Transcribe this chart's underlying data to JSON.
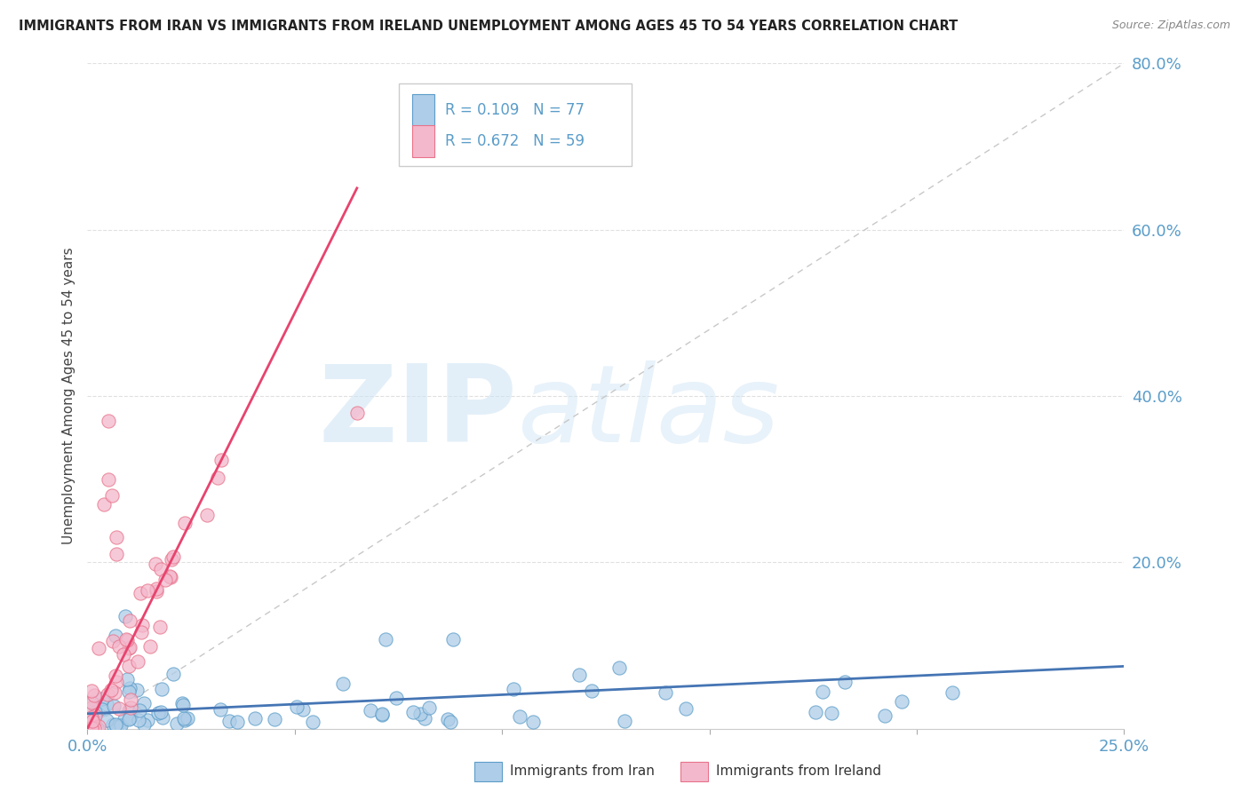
{
  "title": "IMMIGRANTS FROM IRAN VS IMMIGRANTS FROM IRELAND UNEMPLOYMENT AMONG AGES 45 TO 54 YEARS CORRELATION CHART",
  "source": "Source: ZipAtlas.com",
  "ylabel": "Unemployment Among Ages 45 to 54 years",
  "xlim": [
    0.0,
    0.25
  ],
  "ylim": [
    0.0,
    0.8
  ],
  "yticks": [
    0.0,
    0.2,
    0.4,
    0.6,
    0.8
  ],
  "ytick_labels": [
    "",
    "20.0%",
    "40.0%",
    "60.0%",
    "80.0%"
  ],
  "xtick_labels": [
    "0.0%",
    "",
    "",
    "",
    "",
    "25.0%"
  ],
  "legend_iran": "Immigrants from Iran",
  "legend_ireland": "Immigrants from Ireland",
  "R_iran": "0.109",
  "N_iran": "77",
  "R_ireland": "0.672",
  "N_ireland": "59",
  "color_iran_fill": "#aecde8",
  "color_iran_edge": "#5b9dc9",
  "color_ireland_fill": "#f4b8cc",
  "color_ireland_edge": "#e8728a",
  "color_iran_line": "#4575b4",
  "color_ireland_line": "#e8436e",
  "color_diag": "#c8c8c8",
  "color_ytick": "#5b9dc9",
  "color_xtick": "#5b9dc9",
  "color_grid": "#e0e0e0",
  "watermark_zip": "ZIP",
  "watermark_atlas": "atlas",
  "iran_trend_x0": 0.0,
  "iran_trend_y0": 0.018,
  "iran_trend_x1": 0.25,
  "iran_trend_y1": 0.075,
  "ireland_trend_x0": 0.0,
  "ireland_trend_y0": 0.0,
  "ireland_trend_x1": 0.065,
  "ireland_trend_y1": 0.65
}
